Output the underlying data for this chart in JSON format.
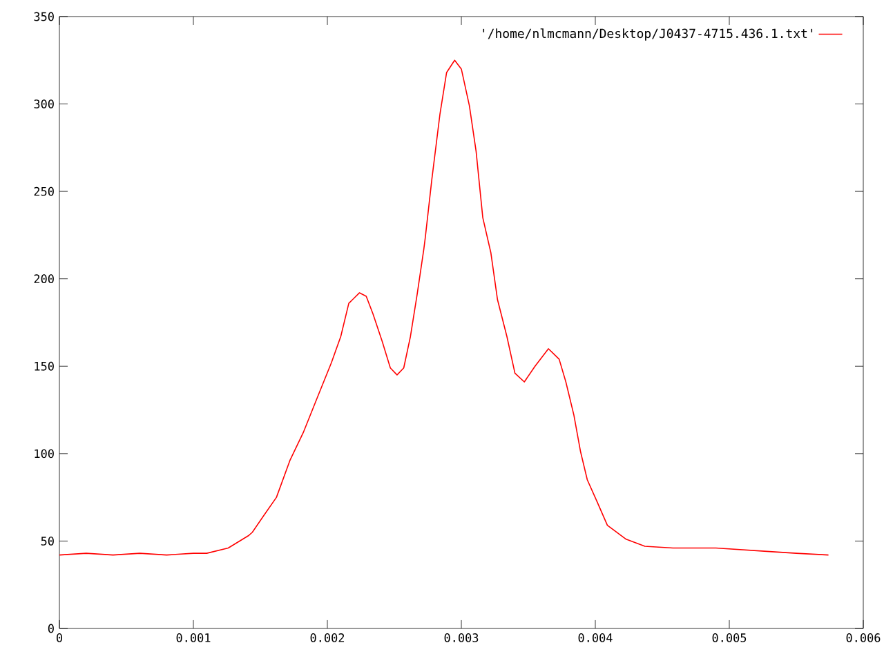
{
  "chart_data": {
    "type": "line",
    "x": [
      0,
      0.0002,
      0.0004,
      0.0006,
      0.0008,
      0.001,
      0.0011,
      0.00126,
      0.00141,
      0.00144,
      0.00152,
      0.00162,
      0.00172,
      0.00182,
      0.00193,
      0.00203,
      0.0021,
      0.00216,
      0.00224,
      0.00229,
      0.00234,
      0.00241,
      0.00247,
      0.00252,
      0.00257,
      0.00262,
      0.00267,
      0.00272,
      0.00273,
      0.00278,
      0.00284,
      0.00289,
      0.00295,
      0.003,
      0.00306,
      0.00311,
      0.00316,
      0.00322,
      0.00327,
      0.00334,
      0.0034,
      0.00347,
      0.00355,
      0.00365,
      0.00373,
      0.00378,
      0.00384,
      0.00389,
      0.00394,
      0.00401,
      0.00409,
      0.00423,
      0.00437,
      0.00458,
      0.0049,
      0.0053,
      0.0055,
      0.00574
    ],
    "series": [
      {
        "name": "'/home/nlmcmann/Desktop/J0437-4715.436.1.txt'",
        "color": "#ff0000",
        "values": [
          42,
          43,
          42,
          43,
          42,
          43,
          43,
          46,
          53,
          55,
          64,
          75,
          96,
          112,
          133,
          152,
          167,
          186,
          192,
          190,
          180,
          164,
          149,
          145,
          149,
          167,
          191,
          217,
          223,
          257,
          294,
          318,
          325,
          320,
          299,
          273,
          235,
          215,
          188,
          167,
          146,
          141,
          150,
          160,
          154,
          141,
          122,
          101,
          85,
          73,
          59,
          51,
          47,
          46,
          46,
          44,
          43,
          42
        ]
      }
    ],
    "xlim": [
      0,
      0.006
    ],
    "ylim": [
      0,
      350
    ],
    "xticks": [
      0,
      0.001,
      0.002,
      0.003,
      0.004,
      0.005,
      0.006
    ],
    "yticks": [
      0,
      50,
      100,
      150,
      200,
      250,
      300,
      350
    ],
    "grid": false,
    "legend": "top right",
    "marker": "none",
    "line_style": "solid"
  }
}
